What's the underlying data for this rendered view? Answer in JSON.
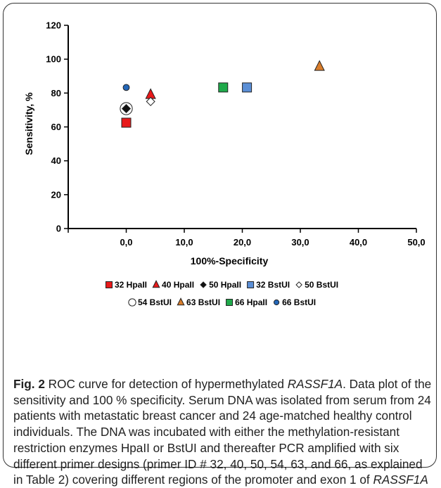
{
  "chart_data": {
    "type": "scatter",
    "xlabel": "100%-Specificity",
    "ylabel": "Sensitivity, %",
    "xlim": [
      -10,
      50
    ],
    "ylim": [
      0,
      120
    ],
    "x_ticks": [
      "0,0",
      "10,0",
      "20,0",
      "30,0",
      "40,0",
      "50,0"
    ],
    "y_ticks": [
      "0",
      "20",
      "40",
      "60",
      "80",
      "100",
      "120"
    ],
    "legend_position": "bottom",
    "series": [
      {
        "name": "32 HpaII",
        "marker": "square",
        "color": "#e8191a",
        "points": [
          {
            "x": 0.0,
            "y": 62.5
          }
        ]
      },
      {
        "name": "40 HpaII",
        "marker": "triangle",
        "color": "#e8191a",
        "points": [
          {
            "x": 4.2,
            "y": 79.2
          }
        ]
      },
      {
        "name": "50 HpaII",
        "marker": "diamond",
        "color": "#111111",
        "points": [
          {
            "x": 0.0,
            "y": 70.8
          }
        ]
      },
      {
        "name": "32 BstUI",
        "marker": "square",
        "color": "#5b8fd6",
        "points": [
          {
            "x": 20.8,
            "y": 83.3
          }
        ]
      },
      {
        "name": "50 BstUI",
        "marker": "diamond-open",
        "color": "#ffffff",
        "points": [
          {
            "x": 4.2,
            "y": 75.0
          }
        ]
      },
      {
        "name": "54 BstUI",
        "marker": "circle-open",
        "color": "#ffffff",
        "points": [
          {
            "x": 0.0,
            "y": 70.8
          }
        ]
      },
      {
        "name": "63 BstUI",
        "marker": "triangle",
        "color": "#d97d2b",
        "points": [
          {
            "x": 33.3,
            "y": 95.8
          }
        ]
      },
      {
        "name": "66 HpaII",
        "marker": "square",
        "color": "#1faa4b",
        "points": [
          {
            "x": 16.7,
            "y": 83.3
          }
        ]
      },
      {
        "name": "66 BstUI",
        "marker": "circle",
        "color": "#2467b8",
        "points": [
          {
            "x": 0.0,
            "y": 83.3
          }
        ]
      }
    ]
  },
  "caption": {
    "label": "Fig. 2",
    "text_1": " ROC curve for detection of hypermethylated ",
    "gene_1": "RASSF1A",
    "text_2": ". Data plot of the sensitivity and 100 % specificity. Serum DNA was isolated from serum from 24 patients with metastatic breast cancer and 24 age-matched healthy control individuals. The DNA was incubated with either the methylation-resistant restriction enzymes HpaII or BstUI and thereafter PCR amplified with six different primer designs (primer ID # 32, 40, 50, 54, 63, and 66, as explained in Table 2) covering different regions of the promoter and exon 1 of ",
    "gene_2": "RASSF1A"
  }
}
